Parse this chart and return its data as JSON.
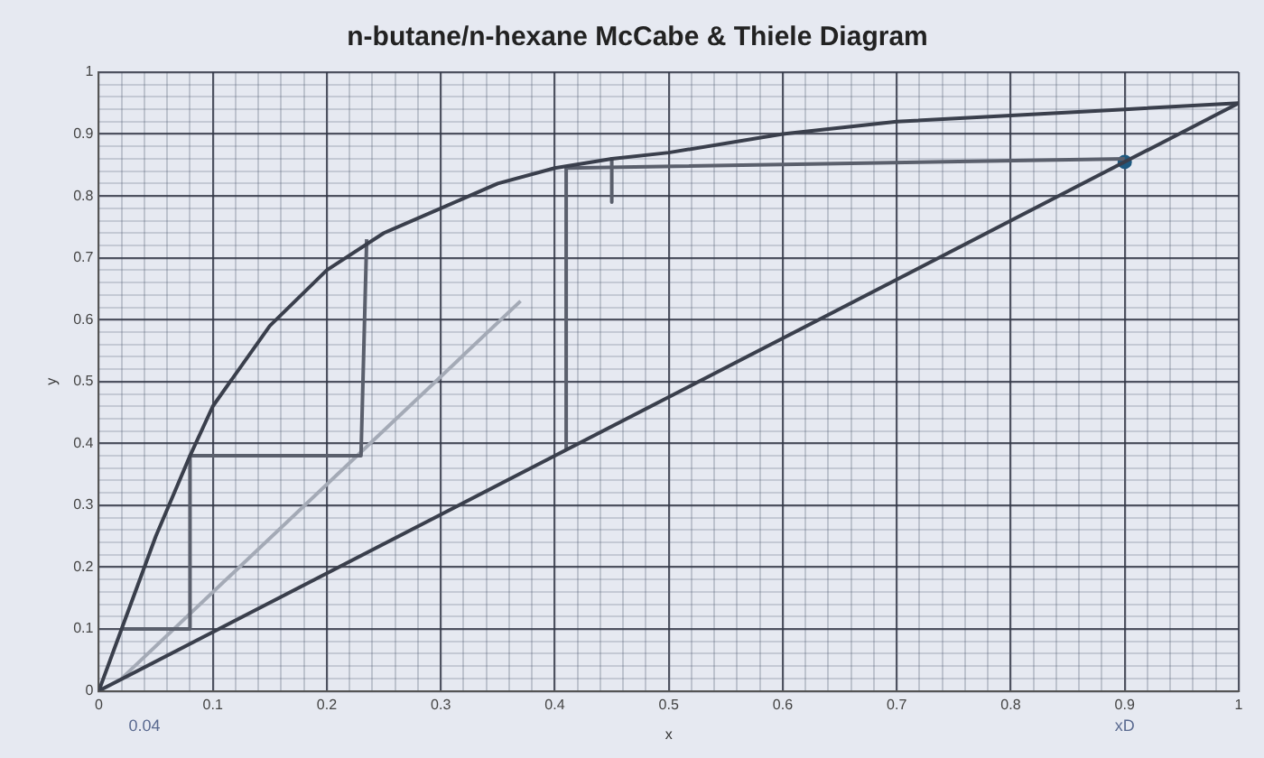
{
  "chart_data": {
    "type": "line",
    "title": "n-butane/n-hexane McCabe & Thiele Diagram",
    "xlabel": "x",
    "ylabel": "y",
    "xlim": [
      0,
      1
    ],
    "ylim": [
      0,
      1
    ],
    "xticks": [
      0,
      {
        "value": 0.02,
        "label": null
      },
      {
        "value": 0.04,
        "label": null
      },
      {
        "value": 0.06,
        "label": null
      },
      {
        "value": 0.08,
        "label": null
      },
      0.1,
      {
        "value": 0.12,
        "label": null
      },
      {
        "value": 0.14,
        "label": null
      },
      {
        "value": 0.16,
        "label": null
      },
      {
        "value": 0.18,
        "label": null
      },
      0.2,
      {
        "value": 0.22,
        "label": null
      },
      {
        "value": 0.24,
        "label": null
      },
      {
        "value": 0.26,
        "label": null
      },
      {
        "value": 0.28,
        "label": null
      },
      0.3,
      {
        "value": 0.32,
        "label": null
      },
      {
        "value": 0.34,
        "label": null
      },
      {
        "value": 0.36,
        "label": null
      },
      {
        "value": 0.38,
        "label": null
      },
      0.4,
      {
        "value": 0.42,
        "label": null
      },
      {
        "value": 0.44,
        "label": null
      },
      {
        "value": 0.46,
        "label": null
      },
      {
        "value": 0.48,
        "label": null
      },
      0.5,
      {
        "value": 0.52,
        "label": null
      },
      {
        "value": 0.54,
        "label": null
      },
      {
        "value": 0.56,
        "label": null
      },
      {
        "value": 0.58,
        "label": null
      },
      0.6,
      {
        "value": 0.62,
        "label": null
      },
      {
        "value": 0.64,
        "label": null
      },
      {
        "value": 0.66,
        "label": null
      },
      {
        "value": 0.68,
        "label": null
      },
      0.7,
      {
        "value": 0.72,
        "label": null
      },
      {
        "value": 0.74,
        "label": null
      },
      {
        "value": 0.76,
        "label": null
      },
      {
        "value": 0.78,
        "label": null
      },
      0.8,
      {
        "value": 0.82,
        "label": null
      },
      {
        "value": 0.84,
        "label": null
      },
      {
        "value": 0.86,
        "label": null
      },
      {
        "value": 0.88,
        "label": null
      },
      0.9,
      {
        "value": 0.92,
        "label": null
      },
      {
        "value": 0.94,
        "label": null
      },
      {
        "value": 0.96,
        "label": null
      },
      {
        "value": 0.98,
        "label": null
      },
      1
    ],
    "yticks": [
      0,
      {
        "value": 0.02,
        "label": null
      },
      {
        "value": 0.04,
        "label": null
      },
      {
        "value": 0.06,
        "label": null
      },
      {
        "value": 0.08,
        "label": null
      },
      0.1,
      {
        "value": 0.12,
        "label": null
      },
      {
        "value": 0.14,
        "label": null
      },
      {
        "value": 0.16,
        "label": null
      },
      {
        "value": 0.18,
        "label": null
      },
      0.2,
      {
        "value": 0.22,
        "label": null
      },
      {
        "value": 0.24,
        "label": null
      },
      {
        "value": 0.26,
        "label": null
      },
      {
        "value": 0.28,
        "label": null
      },
      0.3,
      {
        "value": 0.32,
        "label": null
      },
      {
        "value": 0.34,
        "label": null
      },
      {
        "value": 0.36,
        "label": null
      },
      {
        "value": 0.38,
        "label": null
      },
      0.4,
      {
        "value": 0.42,
        "label": null
      },
      {
        "value": 0.44,
        "label": null
      },
      {
        "value": 0.46,
        "label": null
      },
      {
        "value": 0.48,
        "label": null
      },
      0.5,
      {
        "value": 0.52,
        "label": null
      },
      {
        "value": 0.54,
        "label": null
      },
      {
        "value": 0.56,
        "label": null
      },
      {
        "value": 0.58,
        "label": null
      },
      0.6,
      {
        "value": 0.62,
        "label": null
      },
      {
        "value": 0.64,
        "label": null
      },
      {
        "value": 0.66,
        "label": null
      },
      {
        "value": 0.68,
        "label": null
      },
      0.7,
      {
        "value": 0.72,
        "label": null
      },
      {
        "value": 0.74,
        "label": null
      },
      {
        "value": 0.76,
        "label": null
      },
      {
        "value": 0.78,
        "label": null
      },
      0.8,
      {
        "value": 0.82,
        "label": null
      },
      {
        "value": 0.84,
        "label": null
      },
      {
        "value": 0.86,
        "label": null
      },
      {
        "value": 0.88,
        "label": null
      },
      0.9,
      {
        "value": 0.92,
        "label": null
      },
      {
        "value": 0.94,
        "label": null
      },
      {
        "value": 0.96,
        "label": null
      },
      {
        "value": 0.98,
        "label": null
      },
      1
    ],
    "grid": true,
    "legend": false,
    "marker": "none",
    "line_style": "solid",
    "series": [
      {
        "color": "#3a3f4c",
        "x": [
          0,
          0.02,
          0.05,
          0.08,
          0.1,
          0.15,
          0.2,
          0.25,
          0.3,
          0.35,
          0.4,
          0.45,
          0.5,
          0.6,
          0.7,
          0.8,
          0.9,
          1
        ],
        "values": [
          0,
          0.1,
          0.25,
          0.38,
          0.46,
          0.59,
          0.68,
          0.74,
          0.78,
          0.82,
          0.845,
          0.86,
          0.87,
          0.9,
          0.92,
          0.93,
          0.94,
          0.95
        ]
      },
      {
        "color": "#3a3f4c",
        "x": [
          0,
          1
        ],
        "values": [
          0,
          0.95
        ]
      },
      {
        "color": "#5a5f6c",
        "x": [
          0.02,
          0.08,
          0.08,
          0.23,
          0.235
        ],
        "values": [
          0.1,
          0.1,
          0.38,
          0.38,
          0.73
        ]
      },
      {
        "color": "#5a5f6c",
        "x": [
          0.41,
          0.41,
          0.9
        ],
        "values": [
          0.39,
          0.845,
          0.86
        ]
      },
      {
        "color": "#5a5f6c",
        "x": [
          0.45,
          0.45
        ],
        "values": [
          0.86,
          0.79
        ]
      },
      {
        "color": "#a4aab6",
        "x": [
          0.02,
          0.37
        ],
        "values": [
          0.02,
          0.63
        ]
      },
      {
        "type": "scatter",
        "color": "#1f5a80",
        "marker": "circle",
        "x": [
          0.9
        ],
        "values": [
          0.855
        ]
      }
    ],
    "annotations": [
      "0.04",
      "xD"
    ]
  }
}
